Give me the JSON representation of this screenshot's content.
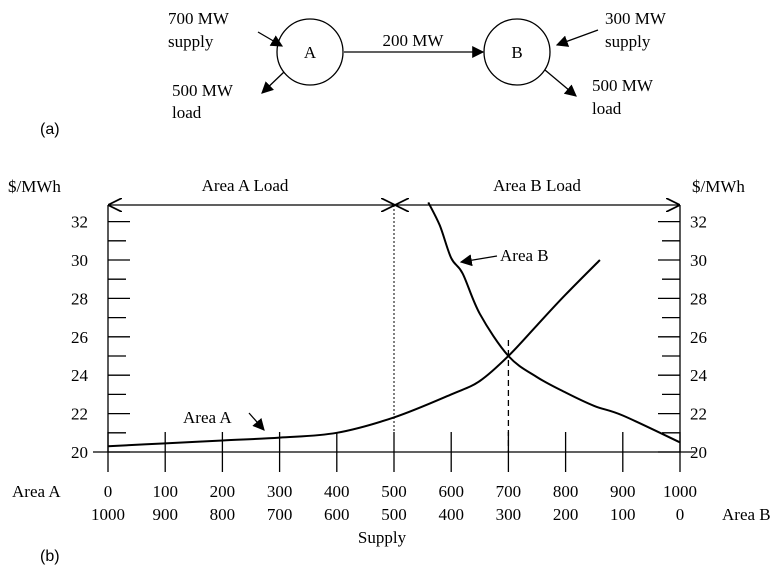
{
  "part_a": {
    "panel_label": "(a)",
    "node_a": {
      "label": "A",
      "supply_line1": "700 MW",
      "supply_line2": "supply",
      "load_line1": "500 MW",
      "load_line2": "load"
    },
    "node_b": {
      "label": "B",
      "supply_line1": "300 MW",
      "supply_line2": "supply",
      "load_line1": "500 MW",
      "load_line2": "load"
    },
    "flow_label": "200 MW"
  },
  "part_b": {
    "panel_label": "(b)",
    "left_unit": "$/MWh",
    "right_unit": "$/MWh",
    "area_a_load_label": "Area A Load",
    "area_b_load_label": "Area B Load",
    "area_a_axis_label": "Area A",
    "area_b_axis_label": "Area B",
    "supply_label": "Supply",
    "curve_a_label": "Area A",
    "curve_b_label": "Area B"
  },
  "chart_data": {
    "type": "line",
    "x_top_ticks": [
      "0",
      "100",
      "200",
      "300",
      "400",
      "500",
      "600",
      "700",
      "800",
      "900",
      "1000"
    ],
    "x_bottom_ticks": [
      "1000",
      "900",
      "800",
      "700",
      "600",
      "500",
      "400",
      "300",
      "200",
      "100",
      "0"
    ],
    "y_ticks": [
      "20",
      "22",
      "24",
      "26",
      "28",
      "30",
      "32"
    ],
    "xlim": [
      0,
      1000
    ],
    "ylim": [
      20,
      33
    ],
    "series": [
      {
        "name": "Area A",
        "x": [
          0,
          100,
          200,
          300,
          400,
          500,
          600,
          650,
          700,
          750,
          800,
          860
        ],
        "y": [
          20.3,
          20.45,
          20.6,
          20.75,
          21.0,
          21.8,
          23.0,
          23.7,
          25.0,
          26.6,
          28.2,
          30.0
        ]
      },
      {
        "name": "Area B",
        "x": [
          560,
          580,
          600,
          620,
          650,
          700,
          750,
          800,
          850,
          900,
          1000
        ],
        "y": [
          33.0,
          31.8,
          30.1,
          29.3,
          27.2,
          25.0,
          23.9,
          23.1,
          22.4,
          21.9,
          20.5
        ]
      }
    ],
    "equilibrium": {
      "x": 700,
      "y": 25.0
    },
    "area_boundary_x": 500
  }
}
